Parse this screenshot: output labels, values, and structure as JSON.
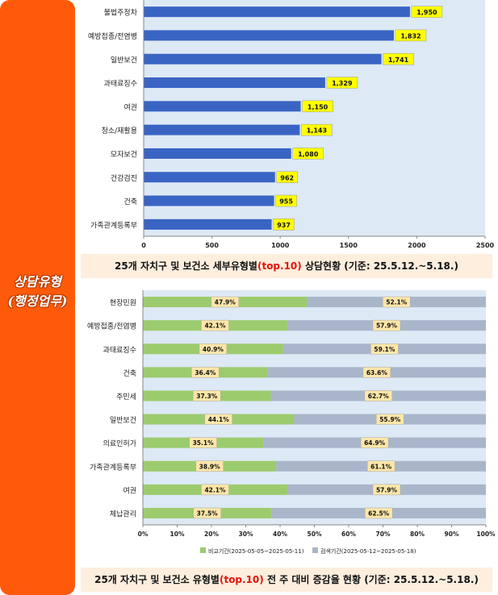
{
  "sidebar": {
    "title": "상담유형\n(행정업무)"
  },
  "chart_data": [
    {
      "type": "bar",
      "orientation": "horizontal",
      "categories": [
        "불법주정차",
        "예방접종/전염병",
        "일반보건",
        "과태료징수",
        "여권",
        "청소/재활용",
        "모자보건",
        "건강검진",
        "건축",
        "가족관계등록부"
      ],
      "values": [
        1950,
        1832,
        1741,
        1329,
        1150,
        1143,
        1080,
        962,
        955,
        937
      ],
      "value_labels": [
        "1,950",
        "1,832",
        "1,741",
        "1,329",
        "1,150",
        "1,143",
        "1,080",
        "962",
        "955",
        "937"
      ],
      "xlim": [
        0,
        2500
      ],
      "x_ticks": [
        "0",
        "500",
        "1000",
        "1500",
        "2000",
        "2500"
      ],
      "grid": false,
      "colors": {
        "bar": "#3a64c4",
        "plot_bg": "#dde9f5",
        "label_bg": "#ffff00"
      },
      "title_parts": [
        "25개 자치구 및 보건소 세부유형별",
        "(top.10)",
        " 상담현황  (기준: 25.5.12.~5.18.)"
      ]
    },
    {
      "type": "bar",
      "orientation": "horizontal",
      "stacked": "percent",
      "categories": [
        "현장민원",
        "예방접종/전염병",
        "과태료징수",
        "건축",
        "주민세",
        "일반보건",
        "의료인허가",
        "가족관계등록부",
        "여권",
        "체납관리"
      ],
      "series": [
        {
          "name": "비교기간(2025-05-05~2025-05-11)",
          "values": [
            47.9,
            42.1,
            40.9,
            36.4,
            37.3,
            44.1,
            35.1,
            38.9,
            42.1,
            37.5
          ],
          "labels": [
            "47.9%",
            "42.1%",
            "40.9%",
            "36.4%",
            "37.3%",
            "44.1%",
            "35.1%",
            "38.9%",
            "42.1%",
            "37.5%"
          ]
        },
        {
          "name": "검색기간(2025-05-12~2025-05-18)",
          "values": [
            52.1,
            57.9,
            59.1,
            63.6,
            62.7,
            55.9,
            64.9,
            61.1,
            57.9,
            62.5
          ],
          "labels": [
            "52.1%",
            "57.9%",
            "59.1%",
            "63.6%",
            "62.7%",
            "55.9%",
            "64.9%",
            "61.1%",
            "57.9%",
            "62.5%"
          ]
        }
      ],
      "xlim": [
        0,
        100
      ],
      "x_ticks": [
        "0%",
        "10%",
        "20%",
        "30%",
        "40%",
        "50%",
        "60%",
        "70%",
        "80%",
        "90%",
        "100%"
      ],
      "legend": "bottom",
      "grid": false,
      "colors": {
        "series1": "#9ccb6e",
        "series2": "#a9b6c9",
        "plot_bg": "#dde9f5",
        "label_bg": "#fde6a8"
      },
      "title_parts": [
        "25개 자치구 및 보건소 유형별",
        "(top.10)",
        " 전 주 대비 증감율 현황 (기준: 25.5.12.~5.18.)"
      ]
    }
  ]
}
